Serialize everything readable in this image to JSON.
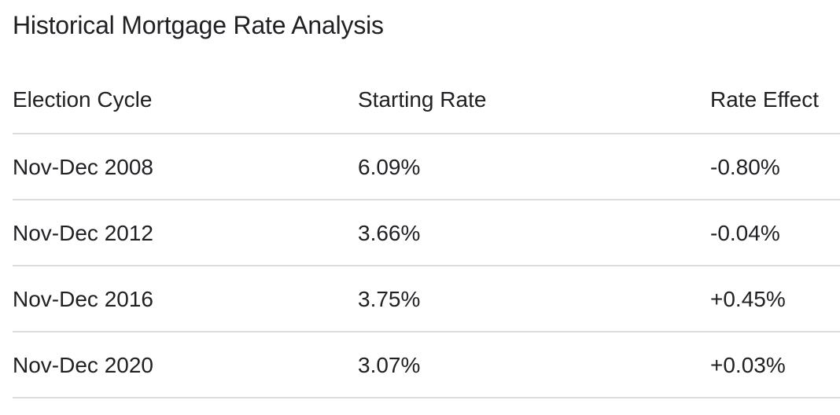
{
  "page": {
    "title": "Historical Mortgage Rate Analysis"
  },
  "table": {
    "headers": [
      "Election Cycle",
      "Starting Rate",
      "Rate Effect"
    ],
    "rows": [
      [
        "Nov-Dec 2008",
        "6.09%",
        "-0.80%"
      ],
      [
        "Nov-Dec 2012",
        "3.66%",
        "-0.04%"
      ],
      [
        "Nov-Dec 2016",
        "3.75%",
        "+0.45%"
      ],
      [
        "Nov-Dec 2020",
        "3.07%",
        "+0.03%"
      ]
    ]
  },
  "colors": {
    "text": "#202124",
    "divider": "#dadce0",
    "background": "#ffffff"
  },
  "chart_data": {
    "type": "table",
    "title": "Historical Mortgage Rate Analysis",
    "columns": [
      "Election Cycle",
      "Starting Rate",
      "Rate Effect"
    ],
    "rows": [
      [
        "Nov-Dec 2008",
        "6.09%",
        "-0.80%"
      ],
      [
        "Nov-Dec 2012",
        "3.66%",
        "-0.04%"
      ],
      [
        "Nov-Dec 2016",
        "3.75%",
        "+0.45%"
      ],
      [
        "Nov-Dec 2020",
        "3.07%",
        "+0.03%"
      ]
    ],
    "notes": {
      "starting_rate_values_pct": [
        6.09,
        3.66,
        3.75,
        3.07
      ],
      "rate_effect_values_pct": [
        -0.8,
        -0.04,
        0.45,
        0.03
      ]
    }
  }
}
